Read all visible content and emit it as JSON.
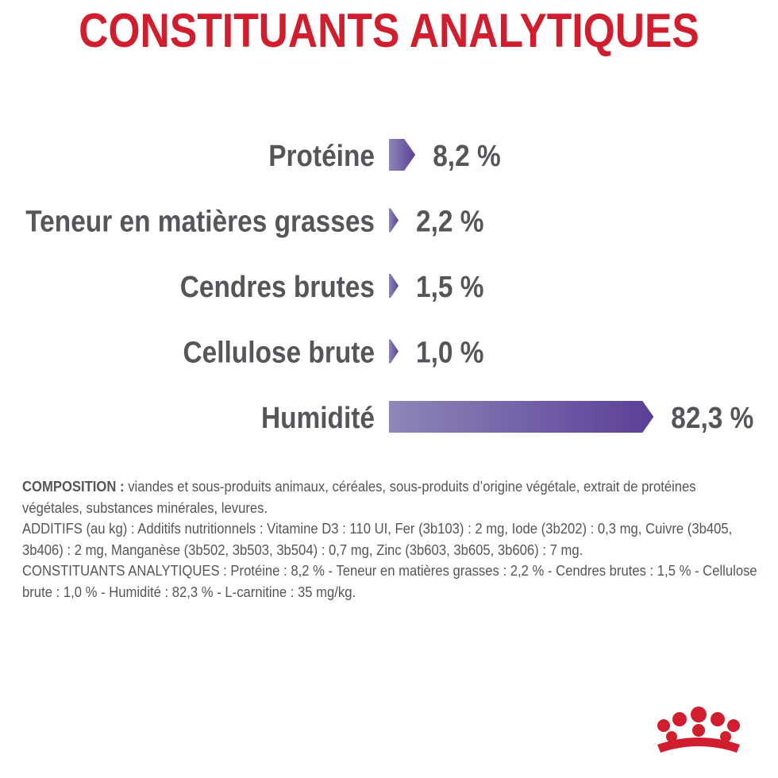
{
  "title": "CONSTITUANTS ANALYTIQUES",
  "chart_data": {
    "type": "bar",
    "orientation": "horizontal",
    "categories": [
      "Protéine",
      "Teneur en matières grasses",
      "Cendres brutes",
      "Cellulose brute",
      "Humidité"
    ],
    "values": [
      8.2,
      2.2,
      1.5,
      1.0,
      82.3
    ],
    "value_labels": [
      "8,2 %",
      "2,2 %",
      "1,5 %",
      "1,0 %",
      "82,3 %"
    ],
    "unit": "%",
    "xlim": [
      0,
      100
    ],
    "grid": false,
    "legend": "none",
    "colors": {
      "bar_start": "#8e86b8",
      "bar_end": "#5b3f97",
      "label": "#55565a"
    }
  },
  "composition": {
    "lead": "COMPOSITION :",
    "text": "viandes et sous-produits animaux, céréales, sous-produits d’origine végétale, extrait de protéines végétales, substances minérales, levures.",
    "additifs": "ADDITIFS (au kg) : Additifs nutritionnels : Vitamine D3 : 110 UI, Fer (3b103) : 2 mg, Iode (3b202) : 0,3 mg, Cuivre (3b405, 3b406) : 2 mg, Manganèse (3b502, 3b503, 3b504) : 0,7 mg, Zinc (3b603, 3b605, 3b606) : 7 mg.",
    "constituants": "CONSTITUANTS ANALYTIQUES : Protéine : 8,2 % - Teneur en matières grasses : 2,2 % - Cendres brutes : 1,5 % - Cellulose brute : 1,0 % - Humidité : 82,3 % - L-carnitine : 35 mg/kg."
  },
  "logo": {
    "icon": "royal-canin-crown-icon",
    "color": "#d11e2f"
  }
}
